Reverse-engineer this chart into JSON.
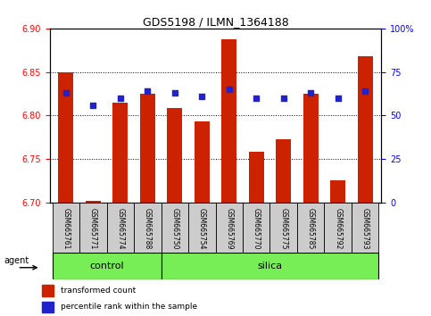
{
  "title": "GDS5198 / ILMN_1364188",
  "samples": [
    "GSM665761",
    "GSM665771",
    "GSM665774",
    "GSM665788",
    "GSM665750",
    "GSM665754",
    "GSM665769",
    "GSM665770",
    "GSM665775",
    "GSM665785",
    "GSM665792",
    "GSM665793"
  ],
  "bar_values": [
    6.85,
    6.702,
    6.815,
    6.825,
    6.808,
    6.793,
    6.888,
    6.758,
    6.772,
    6.825,
    6.725,
    6.868
  ],
  "percentile_values": [
    63,
    56,
    60,
    64,
    63,
    61,
    65,
    60,
    60,
    63,
    60,
    64
  ],
  "bar_bottom": 6.7,
  "ylim_left": [
    6.7,
    6.9
  ],
  "ylim_right": [
    0,
    100
  ],
  "yticks_left": [
    6.7,
    6.75,
    6.8,
    6.85,
    6.9
  ],
  "yticks_right": [
    0,
    25,
    50,
    75,
    100
  ],
  "ytick_labels_right": [
    "0",
    "25",
    "50",
    "75",
    "100%"
  ],
  "bar_color": "#CC2200",
  "dot_color": "#2222CC",
  "control_samples": 4,
  "control_label": "control",
  "silica_label": "silica",
  "agent_label": "agent",
  "legend_bar_label": "transformed count",
  "legend_dot_label": "percentile rank within the sample",
  "group_box_color": "#77EE55",
  "sample_box_color": "#CCCCCC",
  "background_color": "#FFFFFF"
}
